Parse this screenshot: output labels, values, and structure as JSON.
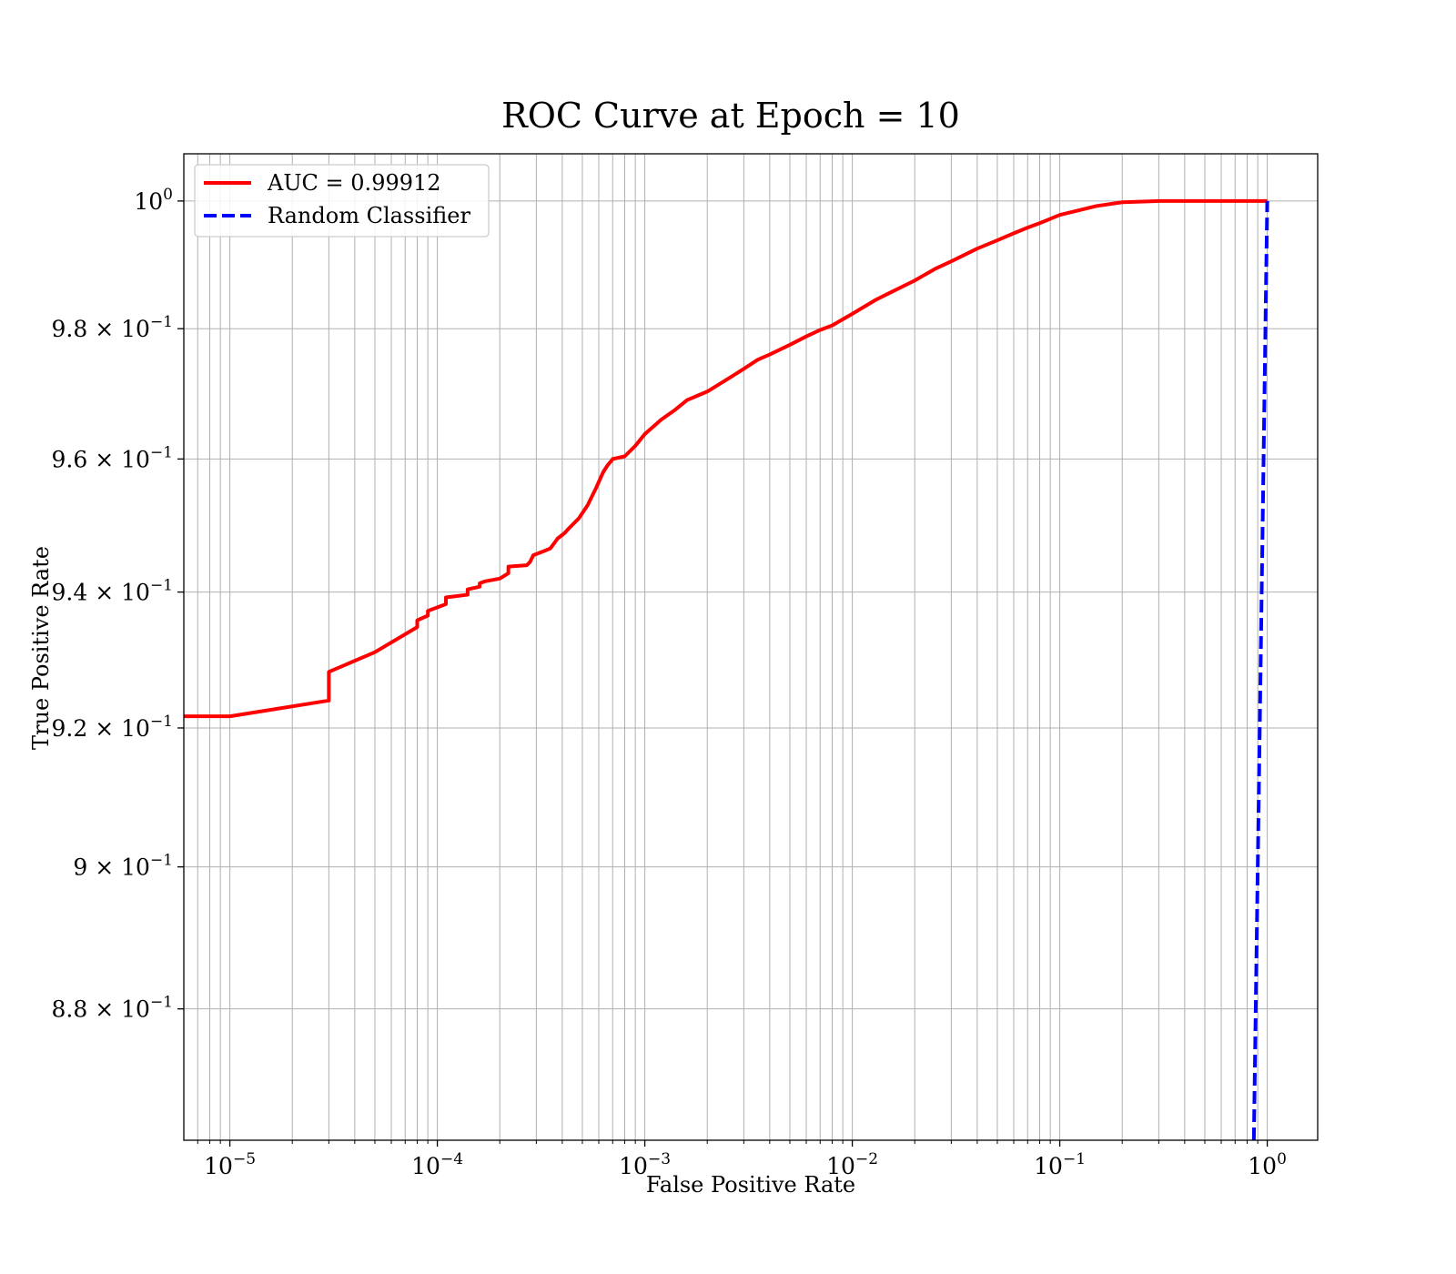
{
  "chart_data": {
    "type": "line",
    "title": "ROC Curve at Epoch = 10",
    "xlabel": "False Positive Rate",
    "ylabel": "True Positive Rate",
    "xscale": "log",
    "yscale": "log",
    "xlim": [
      6e-06,
      1.75
    ],
    "ylim": [
      0.8619,
      1.0075
    ],
    "grid": true,
    "legend_position": "top-left",
    "x_ticks": [
      {
        "value": 1e-05,
        "base": "10",
        "exp": "−5"
      },
      {
        "value": 0.0001,
        "base": "10",
        "exp": "−4"
      },
      {
        "value": 0.001,
        "base": "10",
        "exp": "−3"
      },
      {
        "value": 0.01,
        "base": "10",
        "exp": "−2"
      },
      {
        "value": 0.1,
        "base": "10",
        "exp": "−1"
      },
      {
        "value": 1,
        "base": "10",
        "exp": "0"
      }
    ],
    "y_ticks": [
      {
        "value": 0.88,
        "base": "8.8 × 10",
        "exp": "−1"
      },
      {
        "value": 0.9,
        "base": "9 × 10",
        "exp": "−1"
      },
      {
        "value": 0.92,
        "base": "9.2 × 10",
        "exp": "−1"
      },
      {
        "value": 0.94,
        "base": "9.4 × 10",
        "exp": "−1"
      },
      {
        "value": 0.96,
        "base": "9.6 × 10",
        "exp": "−1"
      },
      {
        "value": 0.98,
        "base": "9.8 × 10",
        "exp": "−1"
      },
      {
        "value": 1.0,
        "base": "10",
        "exp": "0"
      }
    ],
    "series": [
      {
        "name": "AUC = 0.99912",
        "color": "#ff0000",
        "style": "solid",
        "x": [
          6e-06,
          1e-05,
          3e-05,
          3e-05,
          5e-05,
          8e-05,
          8e-05,
          9e-05,
          9e-05,
          0.00011,
          0.00011,
          0.00014,
          0.00014,
          0.00016,
          0.00016,
          0.00017,
          0.0002,
          0.00022,
          0.00022,
          0.00027,
          0.00028,
          0.00029,
          0.00032,
          0.00035,
          0.00036,
          0.00038,
          0.00041,
          0.00043,
          0.00048,
          0.00053,
          0.00058,
          0.00063,
          0.00066,
          0.00068,
          0.00069,
          0.0007,
          0.0008,
          0.0009,
          0.001,
          0.0012,
          0.0014,
          0.0016,
          0.002,
          0.0025,
          0.003,
          0.0035,
          0.004,
          0.005,
          0.006,
          0.007,
          0.008,
          0.01,
          0.013,
          0.015,
          0.02,
          0.025,
          0.03,
          0.04,
          0.05,
          0.06,
          0.07,
          0.08,
          0.1,
          0.15,
          0.2,
          0.3,
          0.5,
          1.0
        ],
        "y": [
          0.9217,
          0.9217,
          0.924,
          0.9282,
          0.9311,
          0.9348,
          0.9358,
          0.9365,
          0.9372,
          0.9382,
          0.9392,
          0.9396,
          0.9404,
          0.9408,
          0.9413,
          0.9416,
          0.942,
          0.9428,
          0.9438,
          0.944,
          0.9445,
          0.9455,
          0.946,
          0.9465,
          0.947,
          0.948,
          0.9488,
          0.9495,
          0.951,
          0.953,
          0.9555,
          0.958,
          0.959,
          0.9595,
          0.9597,
          0.96,
          0.9604,
          0.962,
          0.9638,
          0.966,
          0.9675,
          0.969,
          0.9703,
          0.9722,
          0.9738,
          0.9752,
          0.976,
          0.9775,
          0.9788,
          0.9798,
          0.9805,
          0.9823,
          0.9845,
          0.9855,
          0.9875,
          0.9893,
          0.9905,
          0.9925,
          0.9938,
          0.9949,
          0.9958,
          0.9965,
          0.9978,
          0.9992,
          0.9998,
          1.0,
          1.0,
          1.0
        ]
      },
      {
        "name": "Random Classifier",
        "color": "#0000ff",
        "style": "dashed",
        "x": [
          0.8619,
          1.0
        ],
        "y": [
          0.8619,
          1.0
        ]
      }
    ]
  }
}
